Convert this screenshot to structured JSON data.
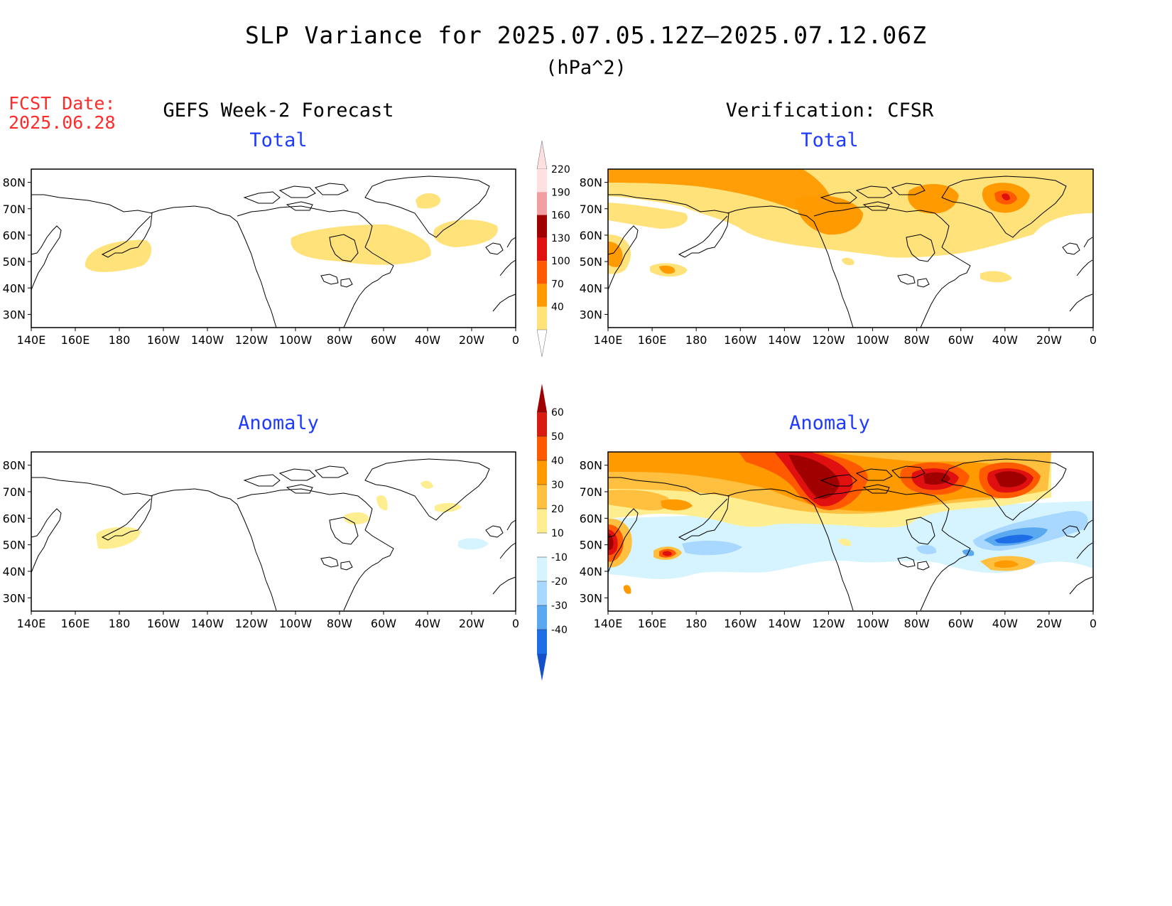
{
  "title": "SLP Variance for 2025.07.05.12Z—2025.07.12.06Z",
  "units": "(hPa^2)",
  "fcst_label": "FCST Date:",
  "fcst_date": "2025.06.28",
  "columns": {
    "left": "GEFS Week-2 Forecast",
    "right": "Verification: CFSR"
  },
  "panels": {
    "top_left": "Total",
    "top_right": "Total",
    "bottom_left": "Anomaly",
    "bottom_right": "Anomaly"
  },
  "axes": {
    "lon_ticks": [
      "140E",
      "160E",
      "180",
      "160W",
      "140W",
      "120W",
      "100W",
      "80W",
      "60W",
      "40W",
      "20W",
      "0"
    ],
    "lat_ticks": [
      "80N",
      "70N",
      "60N",
      "50N",
      "40N",
      "30N"
    ]
  },
  "colorbars": {
    "total": {
      "levels": [
        "220",
        "190",
        "160",
        "130",
        "100",
        "70",
        "40"
      ],
      "colors": [
        "#ffe0e0",
        "#f0a0a0",
        "#a00000",
        "#e01010",
        "#ff5a00",
        "#ff9a00",
        "#ffe27a"
      ]
    },
    "anomaly": {
      "levels": [
        "60",
        "50",
        "40",
        "30",
        "20",
        "10",
        "-10",
        "-20",
        "-30",
        "-40"
      ],
      "colors": [
        "#a00000",
        "#d81c10",
        "#ff5a00",
        "#ff9a00",
        "#ffc040",
        "#ffee90",
        "#ffffff",
        "#d6f4ff",
        "#a8d8ff",
        "#5aa8f0",
        "#1e6ee8",
        "#1450c8"
      ]
    }
  },
  "color_palette": {
    "yellow": "#ffe27a",
    "orange": "#ff9a00",
    "dark_orange": "#ff5a00",
    "red": "#e01010",
    "dark_red": "#a00000",
    "pale_blue": "#d6f4ff",
    "light_blue": "#a8d8ff",
    "blue": "#5aa8f0",
    "deep_blue": "#1e6ee8",
    "panel_title_color": "#1f3bff",
    "fcst_color": "#ff2a2a"
  }
}
